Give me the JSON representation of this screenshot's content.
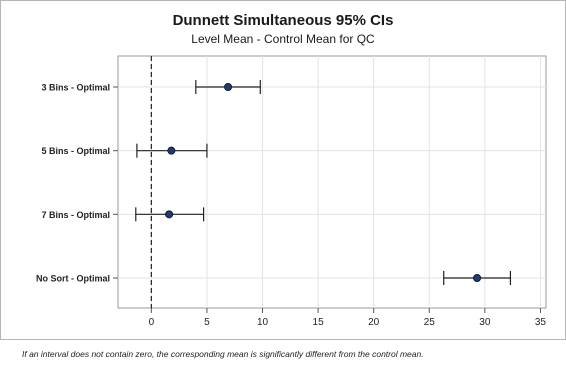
{
  "chart_data": {
    "type": "interval",
    "title": "Dunnett Simultaneous 95% CIs",
    "subtitle": "Level Mean - Control Mean for QC",
    "xlim": [
      -3,
      35.5
    ],
    "xticks": [
      0,
      5,
      10,
      15,
      20,
      25,
      30,
      35
    ],
    "reference_line": 0,
    "grid": true,
    "marker_color": "#1f3b73",
    "categories": [
      "3 Bins - Optimal",
      "5 Bins - Optimal",
      "7 Bins - Optimal",
      "No Sort - Optimal"
    ],
    "intervals": [
      {
        "label": "3 Bins - Optimal",
        "lower": 4.0,
        "estimate": 6.9,
        "upper": 9.8
      },
      {
        "label": "5 Bins - Optimal",
        "lower": -1.3,
        "estimate": 1.8,
        "upper": 5.0
      },
      {
        "label": "7 Bins - Optimal",
        "lower": -1.4,
        "estimate": 1.6,
        "upper": 4.7
      },
      {
        "label": "No Sort - Optimal",
        "lower": 26.3,
        "estimate": 29.3,
        "upper": 32.3
      }
    ]
  },
  "footnote": "If an interval does not contain zero, the corresponding mean is significantly different from the control mean."
}
